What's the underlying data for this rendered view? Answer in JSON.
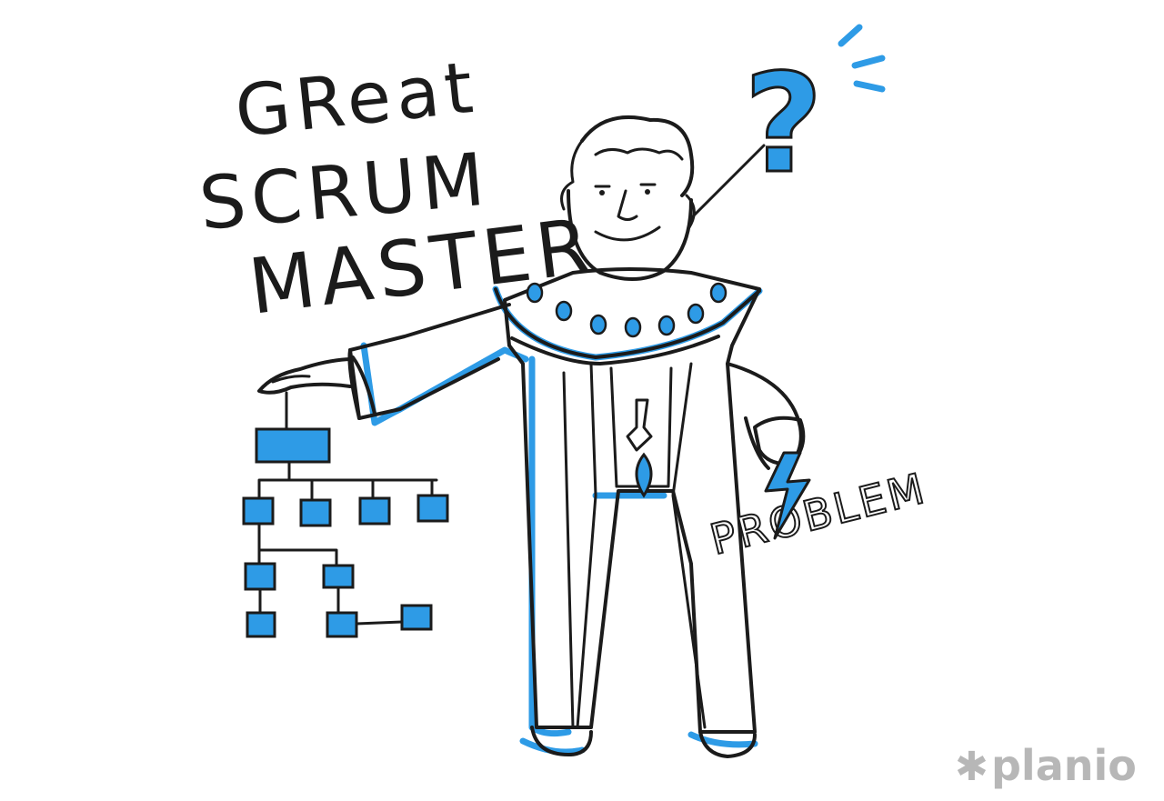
{
  "illustration": {
    "title_lines": [
      "GReat",
      "SCRUM",
      "MASTER"
    ],
    "problem_word": "PROBLEM",
    "question_mark": "?",
    "logo": "planio"
  },
  "colors": {
    "accent_blue": "#2e9be6",
    "ink": "#1b1b1b",
    "logo_gray": "#b7b7b7",
    "background": "#ffffff"
  },
  "icons": [
    "question-mark-icon",
    "lightning-bolt-icon",
    "org-chart-icon",
    "planio-logo"
  ]
}
